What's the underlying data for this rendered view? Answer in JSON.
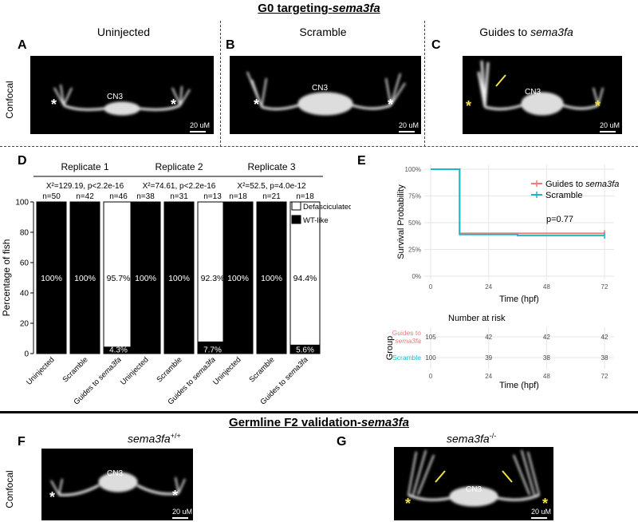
{
  "top_title": {
    "prefix": "G0 targeting-",
    "gene": "sema3fa"
  },
  "bottom_title": {
    "prefix": "Germline F2 validation-",
    "gene": "sema3fa"
  },
  "panels": {
    "A": {
      "label": "A",
      "title": "Uninjected",
      "cn3": "CN3",
      "scale": "20 uM"
    },
    "B": {
      "label": "B",
      "title": "Scramble",
      "cn3": "CN3",
      "scale": "20 uM"
    },
    "C": {
      "label": "C",
      "title_prefix": "Guides to ",
      "title_gene": "sema3fa",
      "cn3": "CN3",
      "scale": "20 uM"
    },
    "D": {
      "label": "D"
    },
    "E": {
      "label": "E"
    },
    "F": {
      "label": "F",
      "genotype": "sema3fa",
      "sup": "+/+",
      "cn3": "CN3",
      "scale": "20 uM"
    },
    "G": {
      "label": "G",
      "genotype": "sema3fa",
      "sup": "-/-",
      "cn3": "CN3",
      "scale": "20 uM"
    }
  },
  "confocal_label": "Confocal",
  "asterisk": "*",
  "chart_data": [
    {
      "type": "bar",
      "panel": "D",
      "ylabel": "Percentage of fish",
      "ylim": [
        0,
        100
      ],
      "yticks": [
        "0",
        "20",
        "40",
        "60",
        "80",
        "100"
      ],
      "legend": [
        "Defasciculated",
        "WT-like"
      ],
      "colors": {
        "defasciculated": "#ffffff",
        "wt_like": "#000000"
      },
      "replicates": [
        {
          "title": "Replicate 1",
          "stat": "X²=129.19, p<2.2e-16",
          "bars": [
            {
              "category": "Uninjected",
              "n": "n=50",
              "wt_like": 100,
              "label": "100%"
            },
            {
              "category": "Scramble",
              "n": "n=42",
              "wt_like": 100,
              "label": "100%"
            },
            {
              "category": "Guides to sema3fa",
              "cat_prefix": "Guides to ",
              "cat_gene": "sema3fa",
              "n": "n=46",
              "wt_like": 4.3,
              "label": "95.7%",
              "wt_label": "4.3%"
            }
          ]
        },
        {
          "title": "Replicate 2",
          "stat": "X²=74.61, p<2.2e-16",
          "bars": [
            {
              "category": "Uninjected",
              "n": "n=38",
              "wt_like": 100,
              "label": "100%"
            },
            {
              "category": "Scramble",
              "n": "n=31",
              "wt_like": 100,
              "label": "100%"
            },
            {
              "category": "Guides to sema3fa",
              "cat_prefix": "Guides to ",
              "cat_gene": "sema3fa",
              "n": "n=13",
              "wt_like": 7.7,
              "label": "92.3%",
              "wt_label": "7.7%"
            }
          ]
        },
        {
          "title": "Replicate 3",
          "stat": "X²=52.5, p=4.0e-12",
          "bars": [
            {
              "category": "Uninjected",
              "n": "n=18",
              "wt_like": 100,
              "label": "100%"
            },
            {
              "category": "Scramble",
              "n": "n=21",
              "wt_like": 100,
              "label": "100%"
            },
            {
              "category": "Guides to sema3fa",
              "cat_prefix": "Guides to ",
              "cat_gene": "sema3fa",
              "n": "n=18",
              "wt_like": 5.6,
              "label": "94.4%",
              "wt_label": "5.6%"
            }
          ]
        }
      ]
    },
    {
      "type": "line",
      "panel": "E",
      "xlabel": "Time (hpf)",
      "ylabel": "Survival Probability",
      "xlim": [
        0,
        72
      ],
      "ylim": [
        0,
        1
      ],
      "xticks": [
        "0",
        "24",
        "48",
        "72"
      ],
      "yticks": [
        "0%",
        "25%",
        "50%",
        "75%",
        "100%"
      ],
      "pvalue": "p=0.77",
      "series": [
        {
          "name": "Guides to sema3fa",
          "name_prefix": "Guides to ",
          "name_gene": "sema3fa",
          "color": "#f07a7a",
          "x": [
            0,
            12,
            12,
            72
          ],
          "y": [
            1.0,
            1.0,
            0.4,
            0.4
          ]
        },
        {
          "name": "Scramble",
          "color": "#1fb7c4",
          "x": [
            0,
            12,
            12,
            36,
            36,
            72
          ],
          "y": [
            1.0,
            1.0,
            0.39,
            0.39,
            0.38,
            0.38
          ]
        }
      ],
      "risk_table": {
        "title": "Number at risk",
        "ylabel": "Group",
        "xlabel": "Time (hpf)",
        "xticks": [
          "0",
          "24",
          "48",
          "72"
        ],
        "rows": [
          {
            "group_line1": "Guides to",
            "group_line2": "sema3fa",
            "color": "#f07a7a",
            "values": [
              "105",
              "42",
              "42",
              "42"
            ]
          },
          {
            "group_line1": "Scramble",
            "group_line2": "",
            "color": "#1fb7c4",
            "values": [
              "100",
              "39",
              "38",
              "38"
            ]
          }
        ]
      }
    }
  ]
}
